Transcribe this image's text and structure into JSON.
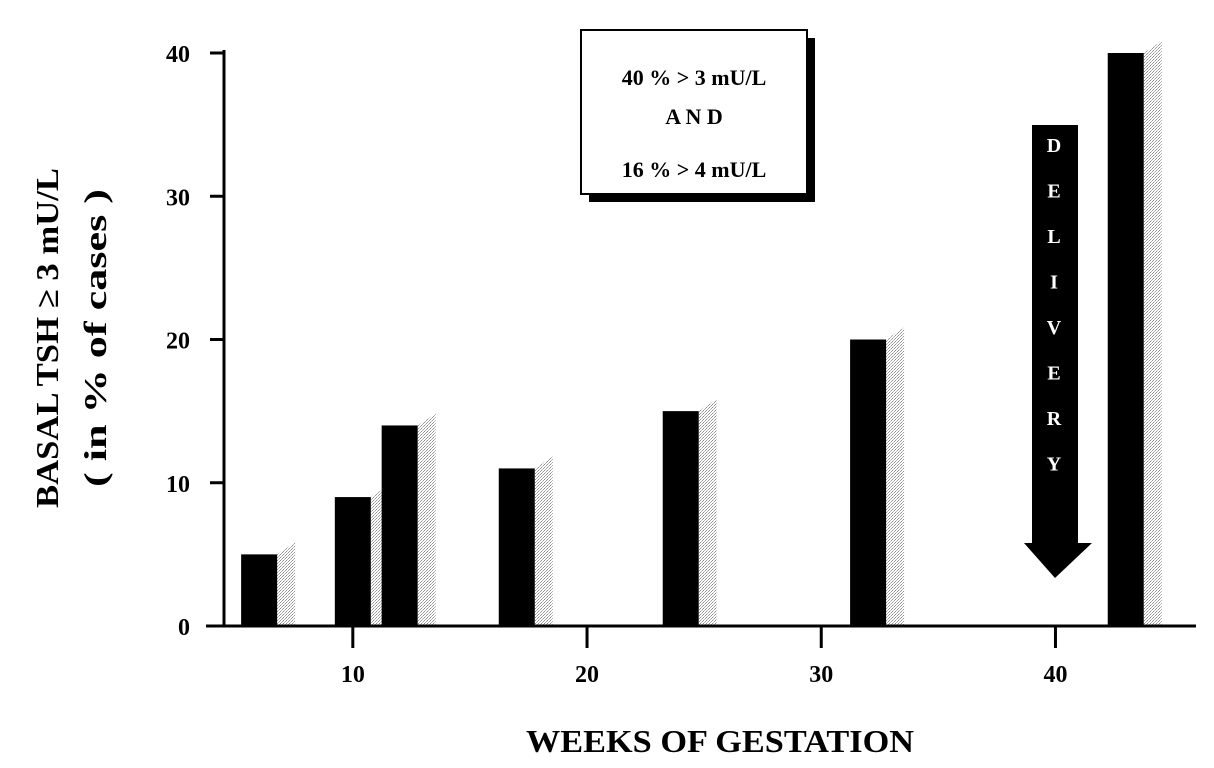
{
  "chart_data": {
    "type": "bar",
    "xlabel": "WEEKS OF GESTATION",
    "ylabel": [
      "BASAL TSH ≥ 3 mU/L",
      "( in % of cases )"
    ],
    "xlim": [
      4.5,
      46
    ],
    "ylim": [
      0,
      40
    ],
    "x_ticks": [
      10,
      20,
      30,
      40
    ],
    "y_ticks": [
      0,
      10,
      20,
      30,
      40
    ],
    "grid": false,
    "bars": [
      {
        "x": 6,
        "value": 5
      },
      {
        "x": 10,
        "value": 9
      },
      {
        "x": 12,
        "value": 14
      },
      {
        "x": 17,
        "value": 11
      },
      {
        "x": 24,
        "value": 15
      },
      {
        "x": 32,
        "value": 20
      },
      {
        "x": 43,
        "value": 40
      }
    ],
    "annotation_box": [
      "40 % > 3 mU/L",
      "A N D",
      "16 % > 4 mU/L"
    ],
    "arrow_text": [
      "D",
      "E",
      "L",
      "I",
      "V",
      "E",
      "R",
      "Y"
    ],
    "colors": {
      "bar": "#000000",
      "shadow": "#c8c8c8",
      "arrow": "#000000"
    }
  }
}
